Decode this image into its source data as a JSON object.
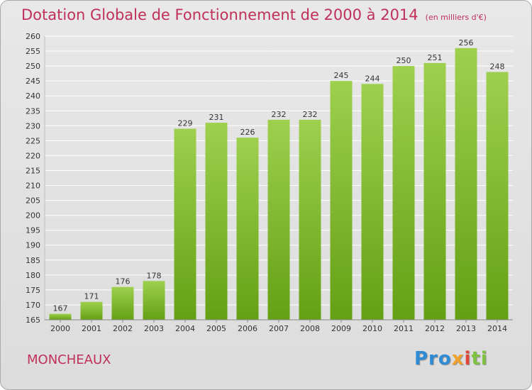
{
  "title": "Dotation Globale de Fonctionnement de 2000 à 2014",
  "unit_note": "(en milliers d'€)",
  "location": "MONCHEAUX",
  "logo": {
    "text": "Proxiti",
    "parts": [
      "Pro",
      "x",
      "i",
      "ti"
    ]
  },
  "colors": {
    "title": "#c0305a",
    "bar_top": "#9ed04e",
    "bar_bottom": "#64a014",
    "grid": "#ffffff",
    "text": "#333333"
  },
  "chart_data": {
    "type": "bar",
    "categories": [
      "2000",
      "2001",
      "2002",
      "2003",
      "2004",
      "2005",
      "2006",
      "2007",
      "2008",
      "2009",
      "2010",
      "2011",
      "2012",
      "2013",
      "2014"
    ],
    "values": [
      167,
      171,
      176,
      178,
      229,
      231,
      226,
      232,
      232,
      245,
      244,
      250,
      251,
      256,
      248
    ],
    "ylim": [
      165,
      260
    ],
    "yticks": [
      165,
      170,
      175,
      180,
      185,
      190,
      195,
      200,
      205,
      210,
      215,
      220,
      225,
      230,
      235,
      240,
      245,
      250,
      255,
      260
    ],
    "grid": true,
    "data_labels": true
  }
}
